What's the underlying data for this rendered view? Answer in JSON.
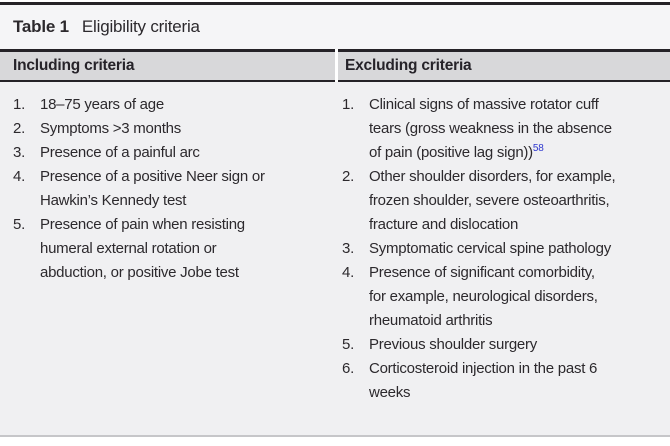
{
  "table": {
    "label": "Table 1",
    "title": "Eligibility criteria",
    "columns": [
      {
        "header": "Including criteria",
        "items": [
          {
            "num": "1.",
            "lines": [
              "18–75 years of age"
            ]
          },
          {
            "num": "2.",
            "lines": [
              "Symptoms >3 months"
            ]
          },
          {
            "num": "3.",
            "lines": [
              "Presence of a painful arc"
            ]
          },
          {
            "num": "4.",
            "lines": [
              "Presence of a positive Neer sign or",
              "Hawkin’s Kennedy test"
            ]
          },
          {
            "num": "5.",
            "lines": [
              "Presence of pain when resisting",
              "humeral external rotation or",
              "abduction, or positive Jobe test"
            ]
          }
        ]
      },
      {
        "header": "Excluding criteria",
        "items": [
          {
            "num": "1.",
            "lines": [
              "Clinical signs of massive rotator cuff",
              "tears (gross weakness in the absence",
              "of pain (positive lag sign))"
            ],
            "ref": "58"
          },
          {
            "num": "2.",
            "lines": [
              "Other shoulder disorders, for example,",
              "frozen shoulder, severe osteoarthritis,",
              "fracture and dislocation"
            ]
          },
          {
            "num": "3.",
            "lines": [
              "Symptomatic cervical spine pathology"
            ]
          },
          {
            "num": "4.",
            "lines": [
              "Presence of significant comorbidity,",
              "for example, neurological disorders,",
              "rheumatoid arthritis"
            ]
          },
          {
            "num": "5.",
            "lines": [
              "Previous shoulder surgery"
            ]
          },
          {
            "num": "6.",
            "lines": [
              "Corticosteroid injection in the past 6",
              "weeks"
            ]
          }
        ]
      }
    ]
  },
  "colors": {
    "reference_link": "#2d36cf",
    "header_background": "#d8d8da",
    "body_background": "#f0f0f2",
    "rule": "#252227"
  }
}
